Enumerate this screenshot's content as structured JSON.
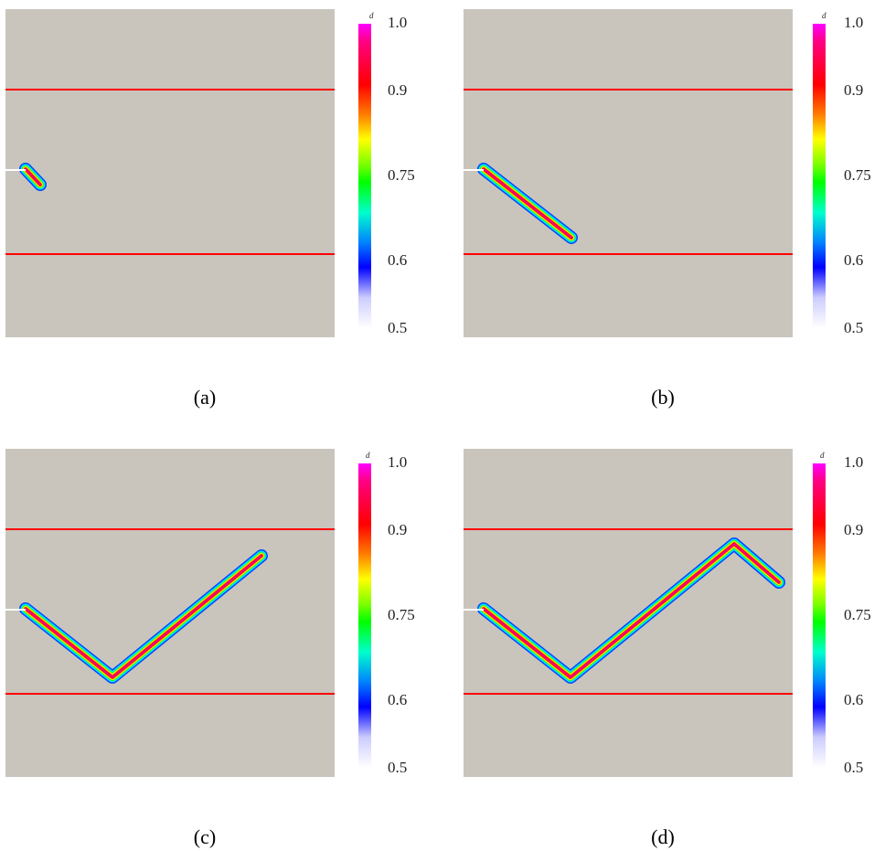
{
  "colorbar": {
    "title": "d",
    "ticks": [
      "1.0",
      "0.9",
      "0.75",
      "0.6",
      "0.5"
    ],
    "colors": [
      "#ff00ff",
      "#ff0066",
      "#ff0000",
      "#ff8000",
      "#ffff00",
      "#80ff00",
      "#00ff00",
      "#00ffcc",
      "#0080ff",
      "#0000ff",
      "#ccccff",
      "#ffffff"
    ]
  },
  "colors": {
    "domain": "#c9c5bd",
    "interface": "#ff0000",
    "notch": "#ffffff"
  },
  "panels": [
    {
      "id": "a",
      "caption": "(a)"
    },
    {
      "id": "b",
      "caption": "(b)"
    },
    {
      "id": "c",
      "caption": "(c)"
    },
    {
      "id": "d",
      "caption": "(d)"
    }
  ]
}
